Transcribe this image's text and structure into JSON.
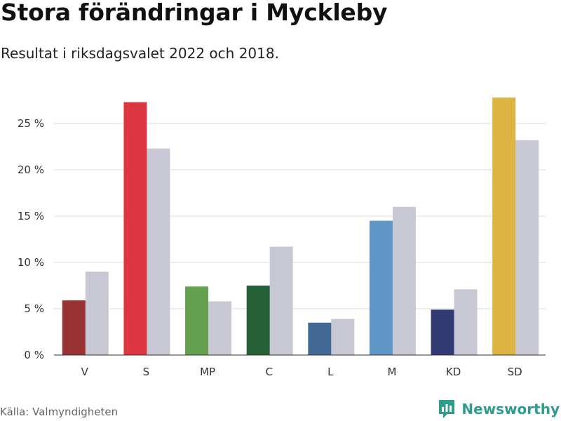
{
  "header": {
    "title": "Stora förändringar i Myckleby",
    "subtitle": "Resultat i riksdagsvalet 2022 och 2018."
  },
  "footer": {
    "source": "Källa: Valmyndigheten",
    "brand": "Newsworthy",
    "brand_icon": "newsworthy-logo-icon",
    "brand_color": "#2f9c8d"
  },
  "chart_data": {
    "type": "bar",
    "title": "Stora förändringar i Myckleby",
    "subtitle": "Resultat i riksdagsvalet 2022 och 2018.",
    "xlabel": "",
    "ylabel": "",
    "categories": [
      "V",
      "S",
      "MP",
      "C",
      "L",
      "M",
      "KD",
      "SD"
    ],
    "series": [
      {
        "values": [
          5.9,
          27.3,
          7.4,
          7.5,
          3.5,
          14.5,
          4.9,
          27.8
        ],
        "colors": [
          "#993333",
          "#dc3740",
          "#63a151",
          "#245f35",
          "#426894",
          "#6096c6",
          "#303a73",
          "#ddb442"
        ]
      },
      {
        "values": [
          9.0,
          22.3,
          5.8,
          11.7,
          3.9,
          16.0,
          7.1,
          23.2
        ],
        "color": "#c8c7d4"
      }
    ],
    "ylim": [
      0,
      28
    ],
    "yticks": [
      0,
      5,
      10,
      15,
      20,
      25
    ],
    "ytick_labels": [
      "0 %",
      "5 %",
      "10 %",
      "15 %",
      "20 %",
      "25 %"
    ],
    "grid": true,
    "legend": "none"
  }
}
